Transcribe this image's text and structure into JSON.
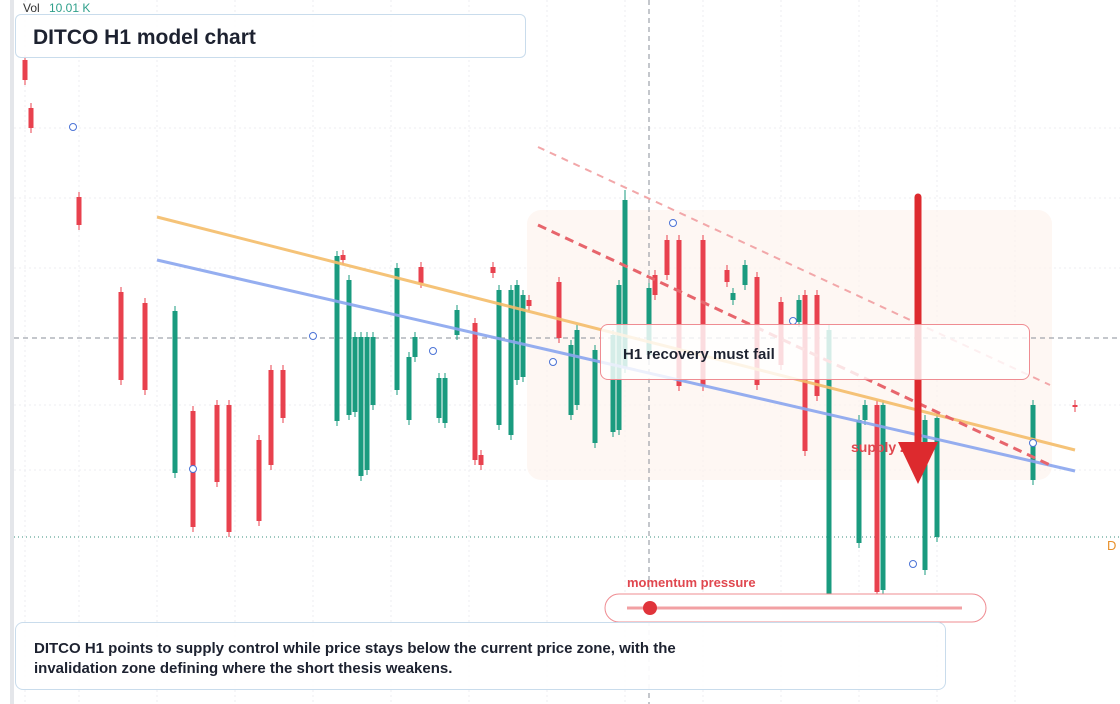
{
  "chart_data": {
    "type": "candlestick",
    "title": "DITCO H1 model chart",
    "volume_label": "Vol",
    "volume_value": "10.01 K",
    "callout": "H1 recovery must fail",
    "zone_label": "supply zone",
    "indicator_label": "momentum pressure",
    "edge_label": "D",
    "caption": "DITCO H1 points to supply control while price stays below the current price zone, with the invalidation zone defining where the short thesis weakens.",
    "up_color": "#1a9b7f",
    "down_color": "#e8414e",
    "xlim": [
      0,
      176
    ],
    "ylim": [
      0,
      70
    ],
    "x": [
      0,
      1,
      9,
      16,
      20,
      25,
      28,
      32,
      34,
      39,
      41,
      43,
      52,
      53,
      54,
      55,
      56,
      57,
      58,
      62,
      64,
      65,
      66,
      69,
      70,
      72,
      75,
      76,
      78,
      79,
      81,
      82,
      83,
      84,
      89,
      91,
      92,
      95,
      98,
      99,
      100,
      104,
      105,
      107,
      109,
      113,
      117,
      118,
      120,
      122,
      126,
      129,
      130,
      132,
      134,
      139,
      140,
      142,
      143,
      150,
      152,
      168,
      175
    ],
    "open": [
      64,
      59.2,
      50.3,
      40.8,
      39.7,
      22.7,
      28.9,
      29.5,
      29.5,
      26,
      33,
      33,
      27.9,
      44.5,
      28.5,
      28.8,
      22.4,
      23,
      29.5,
      31,
      28,
      34.3,
      43.3,
      28.2,
      27.7,
      36.5,
      37.7,
      24.5,
      43.3,
      27.5,
      26.5,
      32,
      32.3,
      40,
      41.8,
      28.5,
      29.5,
      25.7,
      26.8,
      27,
      33.2,
      34.5,
      42.5,
      46,
      46,
      46,
      43,
      40,
      41.5,
      42.3,
      39.8,
      37.8,
      40.5,
      40.5,
      10.5,
      15.7,
      28,
      29.5,
      11,
      13,
      16.3,
      22,
      29.5
    ],
    "close": [
      62,
      57.2,
      47.5,
      32,
      31,
      38.9,
      17.3,
      21.8,
      16.8,
      17.9,
      23.5,
      28.2,
      44.4,
      44,
      42,
      36.3,
      36.3,
      36.3,
      36.3,
      43.2,
      34.3,
      36.3,
      41.7,
      32.2,
      32.2,
      39,
      24,
      23.5,
      42.7,
      41,
      41,
      41.5,
      40.5,
      39.4,
      36.2,
      35.5,
      37,
      35,
      36.5,
      41.5,
      50,
      41.2,
      40.5,
      42.5,
      31.4,
      31.4,
      41.8,
      40.7,
      43.5,
      31.5,
      33.5,
      40,
      24.9,
      30.4,
      37,
      28,
      29.5,
      10.8,
      29.5,
      28,
      28.2,
      29.5,
      29.3
    ],
    "high": [
      64.5,
      59.7,
      50.8,
      41.3,
      40.2,
      39.4,
      29.4,
      30,
      30,
      26.5,
      33.5,
      33.5,
      44.9,
      45,
      42.5,
      36.8,
      36.8,
      36.8,
      36.8,
      43.7,
      34.8,
      36.8,
      43.8,
      32.7,
      32.7,
      39.5,
      38.2,
      25,
      43.8,
      41.5,
      41.5,
      42,
      41,
      40.5,
      42.3,
      36,
      37.5,
      35.5,
      37,
      42,
      51,
      41.7,
      43,
      46.5,
      46.5,
      46.5,
      43.5,
      41.2,
      44,
      42.8,
      40.3,
      40.5,
      41,
      41,
      37.5,
      28.5,
      30,
      30,
      30,
      28.5,
      28.7,
      30,
      30
    ],
    "low": [
      61.5,
      56.7,
      47,
      31.5,
      30.5,
      22.2,
      16.8,
      21.3,
      16.3,
      17.4,
      23,
      27.7,
      27.4,
      43.5,
      28,
      28.3,
      21.9,
      22.5,
      29,
      30.5,
      27.5,
      33.8,
      41.2,
      27.7,
      27.2,
      36,
      23.5,
      23,
      42.2,
      27,
      26,
      31.5,
      31.8,
      38.9,
      35.7,
      28,
      29,
      25.2,
      26.3,
      26.5,
      32.7,
      34,
      40,
      42,
      30.9,
      30.9,
      41.3,
      39.5,
      41,
      31,
      33,
      37.3,
      24.4,
      29.9,
      10,
      15.2,
      27.5,
      10.3,
      10.5,
      12.5,
      15.8,
      21.5,
      28.8
    ]
  }
}
